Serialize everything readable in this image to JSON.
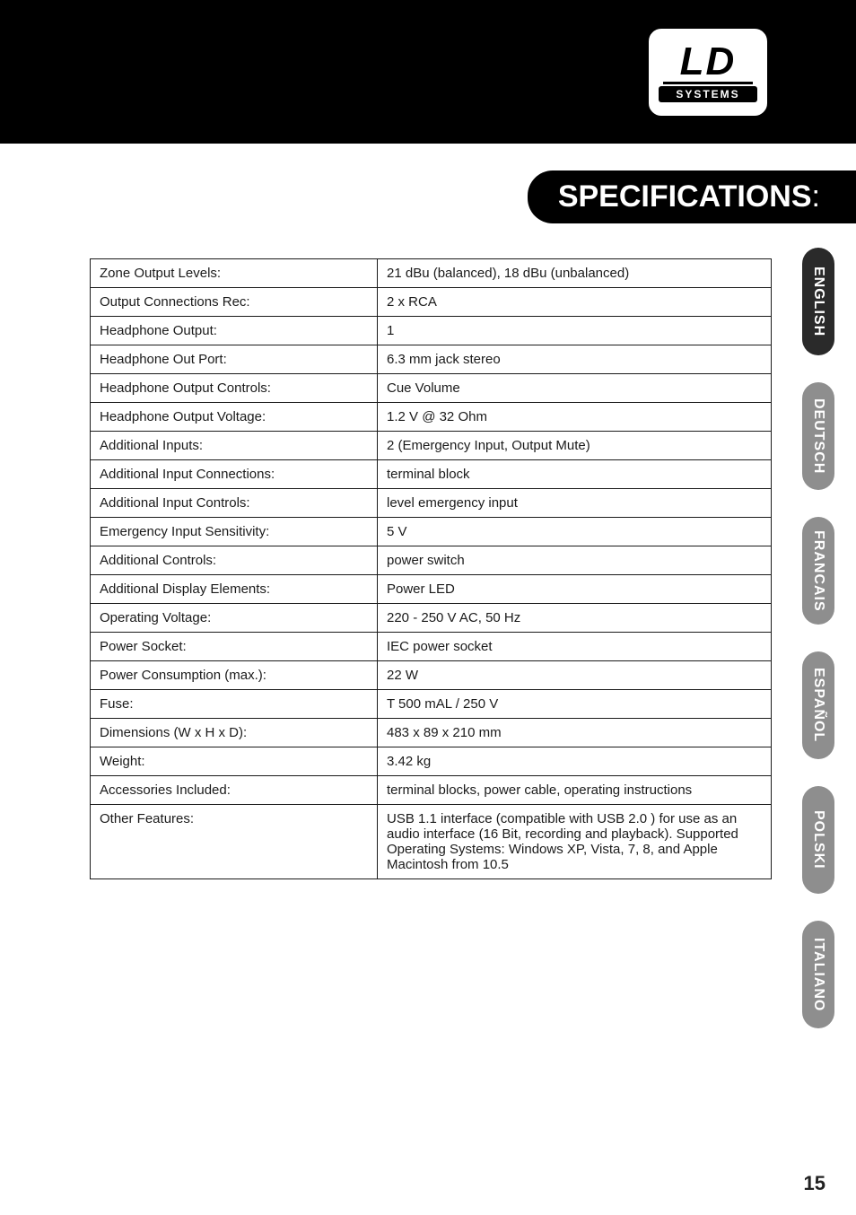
{
  "logo": {
    "brand": "LD",
    "sub": "SYSTEMS"
  },
  "title": {
    "text": "SPECIFICATIONS",
    "suffix": ":"
  },
  "specs": [
    {
      "k": "Zone Output Levels:",
      "v": "21 dBu (balanced), 18 dBu (unbalanced)"
    },
    {
      "k": "Output Connections Rec:",
      "v": "2 x RCA"
    },
    {
      "k": "Headphone Output:",
      "v": "1"
    },
    {
      "k": "Headphone Out Port:",
      "v": "6.3 mm jack stereo"
    },
    {
      "k": "Headphone Output Controls:",
      "v": "Cue Volume"
    },
    {
      "k": "Headphone Output Voltage:",
      "v": "1.2 V @ 32 Ohm"
    },
    {
      "k": "Additional Inputs:",
      "v": "2 (Emergency Input, Output Mute)"
    },
    {
      "k": "Additional Input Connections:",
      "v": "terminal block"
    },
    {
      "k": "Additional Input Controls:",
      "v": "level emergency input"
    },
    {
      "k": "Emergency Input Sensitivity:",
      "v": "5 V"
    },
    {
      "k": "Additional Controls:",
      "v": "power switch"
    },
    {
      "k": "Additional Display Elements:",
      "v": "Power LED"
    },
    {
      "k": "Operating Voltage:",
      "v": "220 - 250 V AC, 50 Hz"
    },
    {
      "k": "Power Socket:",
      "v": "IEC power socket"
    },
    {
      "k": "Power Consumption (max.):",
      "v": "22 W"
    },
    {
      "k": "Fuse:",
      "v": "T 500 mAL / 250 V"
    },
    {
      "k": "Dimensions (W x H x D):",
      "v": "483 x 89 x 210 mm"
    },
    {
      "k": "Weight:",
      "v": "3.42 kg"
    },
    {
      "k": "Accessories Included:",
      "v": "terminal blocks, power cable, operating instructions"
    },
    {
      "k": "Other Features:",
      "v": "USB 1.1 interface (compatible with USB 2.0 ) for use as an audio interface (16 Bit, recording and playback). Supported Operating Systems: Windows XP, Vista, 7, 8, and Apple Macintosh from 10.5"
    }
  ],
  "languages": [
    {
      "label": "ENGLISH",
      "dark": true
    },
    {
      "label": "DEUTSCH",
      "dark": false
    },
    {
      "label": "FRANCAIS",
      "dark": false
    },
    {
      "label": "ESPAÑOL",
      "dark": false
    },
    {
      "label": "POLSKI",
      "dark": false
    },
    {
      "label": "ITALIANO",
      "dark": false
    }
  ],
  "pageNumber": "15"
}
